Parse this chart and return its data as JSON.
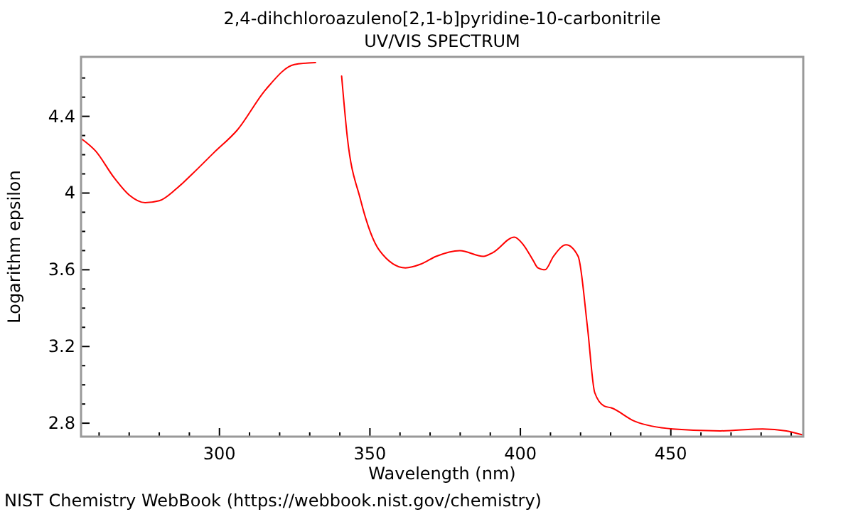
{
  "chart_data": {
    "type": "line",
    "title": "2,4-dihchloroazuleno[2,1-b]pyridine-10-carbonitrile",
    "subtitle": "UV/VIS SPECTRUM",
    "xlabel": "Wavelength (nm)",
    "ylabel": "Logarithm epsilon",
    "annotations": [
      "NIST Chemistry WebBook (https://webbook.nist.gov/chemistry)"
    ],
    "xlim": [
      254,
      494
    ],
    "ylim": [
      2.73,
      4.71
    ],
    "xticks": [
      {
        "value": 260,
        "label": null
      },
      {
        "value": 270,
        "label": null
      },
      {
        "value": 280,
        "label": null
      },
      {
        "value": 290,
        "label": null
      },
      300,
      {
        "value": 310,
        "label": null
      },
      {
        "value": 320,
        "label": null
      },
      {
        "value": 330,
        "label": null
      },
      {
        "value": 340,
        "label": null
      },
      350,
      {
        "value": 360,
        "label": null
      },
      {
        "value": 370,
        "label": null
      },
      {
        "value": 380,
        "label": null
      },
      {
        "value": 390,
        "label": null
      },
      400,
      {
        "value": 410,
        "label": null
      },
      {
        "value": 420,
        "label": null
      },
      {
        "value": 430,
        "label": null
      },
      {
        "value": 440,
        "label": null
      },
      450,
      {
        "value": 460,
        "label": null
      },
      {
        "value": 470,
        "label": null
      },
      {
        "value": 480,
        "label": null
      },
      {
        "value": 490,
        "label": null
      }
    ],
    "yticks": [
      2.8,
      {
        "value": 2.9,
        "label": null
      },
      {
        "value": 3.0,
        "label": null
      },
      {
        "value": 3.1,
        "label": null
      },
      3.2,
      {
        "value": 3.3,
        "label": null
      },
      {
        "value": 3.4,
        "label": null
      },
      {
        "value": 3.5,
        "label": null
      },
      3.6,
      {
        "value": 3.7,
        "label": null
      },
      {
        "value": 3.8,
        "label": null
      },
      {
        "value": 3.9,
        "label": null
      },
      4,
      {
        "value": 4.1,
        "label": null
      },
      {
        "value": 4.2,
        "label": null
      },
      {
        "value": 4.3,
        "label": null
      },
      4.4,
      {
        "value": 4.5,
        "label": null
      },
      {
        "value": 4.6,
        "label": null
      }
    ],
    "grid": false,
    "marker": "none",
    "line_style": "solid",
    "series": [
      {
        "color": "#ff0000",
        "x": [
          254.4,
          258.8,
          265,
          270,
          275.3,
          280,
          285.5,
          291,
          298.1,
          306,
          315.4,
          324.9,
          331.9,
          335,
          339,
          340.6,
          342.5,
          346.8,
          353.2,
          361.8,
          367,
          372,
          379.9,
          387.7,
          390.9,
          398,
          401,
          404.2,
          405.8,
          408.2,
          411,
          415.2,
          419.2,
          422.3,
          424.7,
          427.8,
          430.2,
          438,
          450.6,
          466.4,
          480.5,
          488.4,
          493.5
        ],
        "values": [
          4.28,
          4.22,
          4.08,
          3.99,
          3.95,
          3.96,
          4.02,
          4.1,
          4.21,
          4.33,
          4.54,
          4.67,
          4.68,
          null,
          null,
          4.61,
          4.29,
          3.97,
          3.7,
          3.61,
          3.63,
          3.67,
          3.7,
          3.67,
          3.69,
          3.77,
          3.73,
          3.65,
          3.61,
          3.6,
          3.67,
          3.73,
          3.67,
          3.3,
          2.96,
          2.89,
          2.88,
          2.81,
          2.77,
          2.76,
          2.77,
          2.76,
          2.74
        ]
      }
    ]
  }
}
